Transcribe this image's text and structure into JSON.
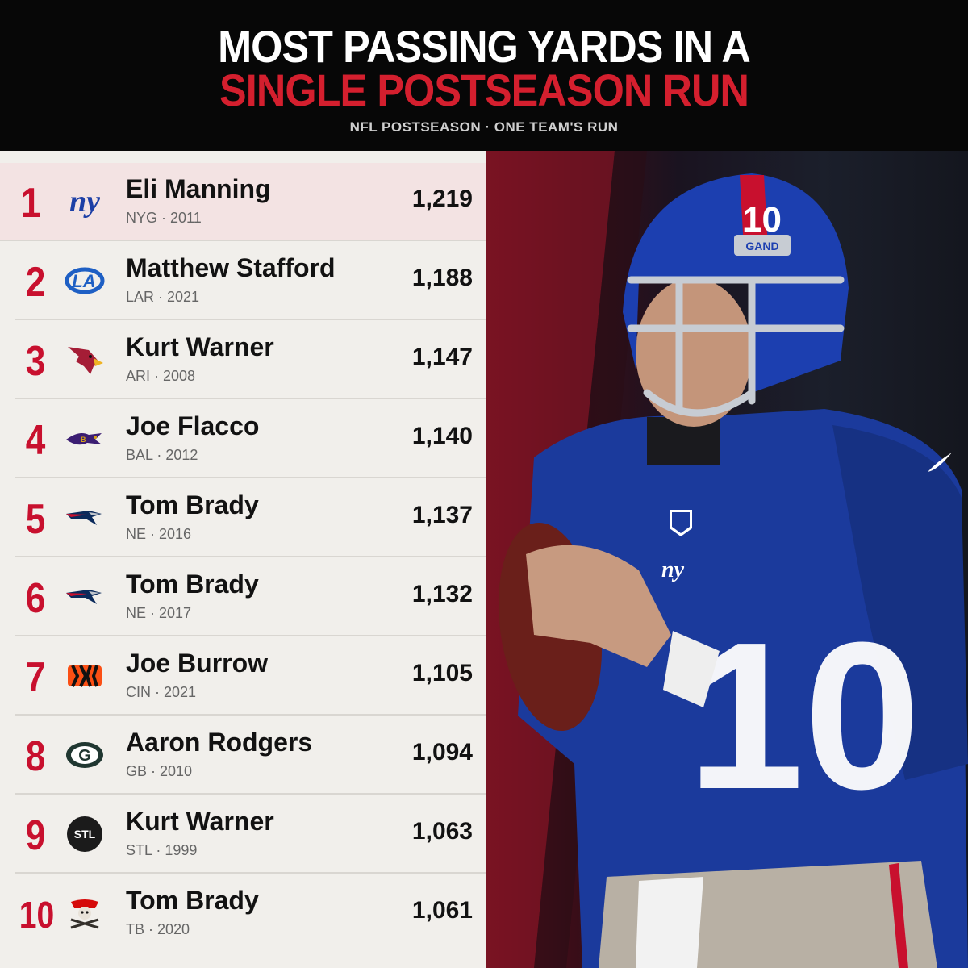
{
  "header": {
    "title_line1": "MOST PASSING YARDS IN A",
    "title_line2": "SINGLE POSTSEASON RUN",
    "subtitle": "NFL POSTSEASON · ONE TEAM'S RUN"
  },
  "colors": {
    "accent_red": "#c8102e",
    "title_red": "#d41f2e",
    "header_bg": "#070707",
    "list_bg": "#f1efeb",
    "highlight_bg": "#f3e3e3"
  },
  "rankings": [
    {
      "rank": "1",
      "name": "Eli Manning",
      "meta": "NYG · 2011",
      "yards": "1,219",
      "logo_icon": "giants-logo-icon",
      "logo_text": "ny"
    },
    {
      "rank": "2",
      "name": "Matthew Stafford",
      "meta": "LAR · 2021",
      "yards": "1,188",
      "logo_icon": "rams-logo-icon",
      "logo_text": "LA"
    },
    {
      "rank": "3",
      "name": "Kurt Warner",
      "meta": "ARI · 2008",
      "yards": "1,147",
      "logo_icon": "cardinals-logo-icon",
      "logo_text": ""
    },
    {
      "rank": "4",
      "name": "Joe Flacco",
      "meta": "BAL · 2012",
      "yards": "1,140",
      "logo_icon": "ravens-logo-icon",
      "logo_text": ""
    },
    {
      "rank": "5",
      "name": "Tom Brady",
      "meta": "NE · 2016",
      "yards": "1,137",
      "logo_icon": "patriots-logo-icon",
      "logo_text": ""
    },
    {
      "rank": "6",
      "name": "Tom Brady",
      "meta": "NE · 2017",
      "yards": "1,132",
      "logo_icon": "patriots-logo-icon",
      "logo_text": ""
    },
    {
      "rank": "7",
      "name": "Joe Burrow",
      "meta": "CIN · 2021",
      "yards": "1,105",
      "logo_icon": "bengals-logo-icon",
      "logo_text": ""
    },
    {
      "rank": "8",
      "name": "Aaron Rodgers",
      "meta": "GB · 2010",
      "yards": "1,094",
      "logo_icon": "packers-logo-icon",
      "logo_text": "G"
    },
    {
      "rank": "9",
      "name": "Kurt Warner",
      "meta": "STL · 1999",
      "yards": "1,063",
      "logo_icon": "stl-logo-icon",
      "logo_text": "STL"
    },
    {
      "rank": "10",
      "name": "Tom Brady",
      "meta": "TB · 2020",
      "yards": "1,061",
      "logo_icon": "buccaneers-logo-icon",
      "logo_text": ""
    }
  ],
  "photo": {
    "jersey_number": "10",
    "helmet_number": "10",
    "helmet_text": "GAND",
    "jersey_logo": "ny",
    "icon": "quarterback-photo"
  }
}
